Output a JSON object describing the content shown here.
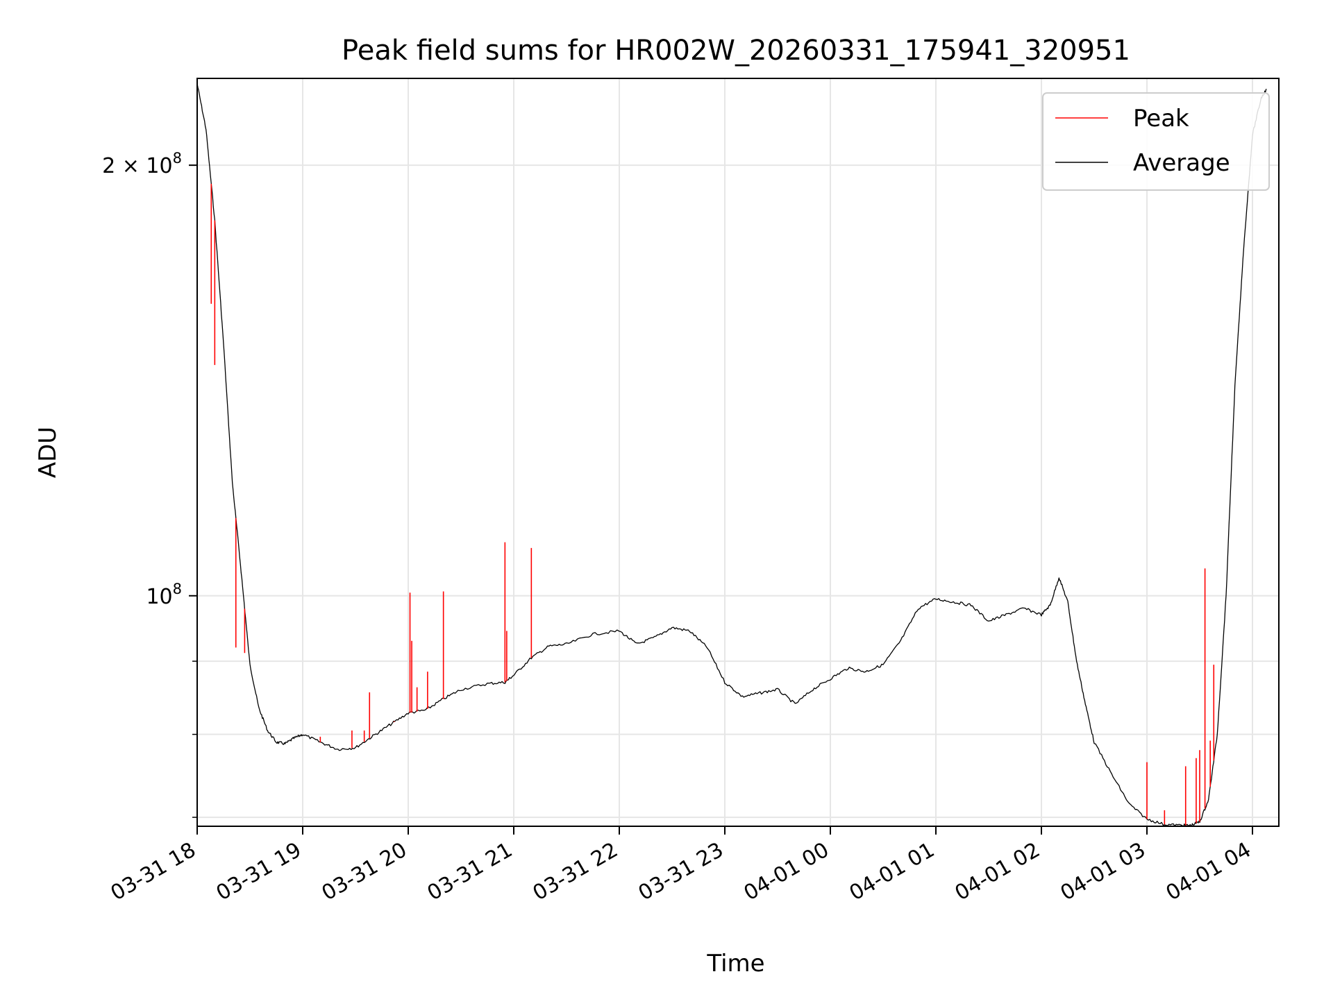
{
  "chart_data": {
    "type": "line",
    "title": "Peak field sums for HR002W_20260331_175941_320951",
    "xlabel": "Time",
    "ylabel": "ADU",
    "yscale": "log",
    "grid": true,
    "legend_position": "upper-right",
    "xlim": [
      "2026-03-31 18:00",
      "2026-04-01 04:15"
    ],
    "ylim": [
      69000000,
      230000000
    ],
    "x_ticks": [
      {
        "t": "2026-03-31 18:00",
        "label": "03-31 18"
      },
      {
        "t": "2026-03-31 19:00",
        "label": "03-31 19"
      },
      {
        "t": "2026-03-31 20:00",
        "label": "03-31 20"
      },
      {
        "t": "2026-03-31 21:00",
        "label": "03-31 21"
      },
      {
        "t": "2026-03-31 22:00",
        "label": "03-31 22"
      },
      {
        "t": "2026-03-31 23:00",
        "label": "03-31 23"
      },
      {
        "t": "2026-04-01 00:00",
        "label": "04-01 00"
      },
      {
        "t": "2026-04-01 01:00",
        "label": "04-01 01"
      },
      {
        "t": "2026-04-01 02:00",
        "label": "04-01 02"
      },
      {
        "t": "2026-04-01 03:00",
        "label": "04-01 03"
      },
      {
        "t": "2026-04-01 04:00",
        "label": "04-01 04"
      }
    ],
    "y_major_ticks": [
      {
        "value": 100000000,
        "label": "10",
        "exp": "8"
      },
      {
        "value": 200000000,
        "label": "2 × 10",
        "exp": "8"
      }
    ],
    "y_minor_ticks": [
      70000000,
      80000000,
      90000000
    ],
    "series": [
      {
        "name": "Average",
        "color": "#000000",
        "x": [
          "2026-03-31 18:00",
          "2026-03-31 18:05",
          "2026-03-31 18:10",
          "2026-03-31 18:15",
          "2026-03-31 18:20",
          "2026-03-31 18:25",
          "2026-03-31 18:30",
          "2026-03-31 18:35",
          "2026-03-31 18:40",
          "2026-03-31 18:45",
          "2026-03-31 18:50",
          "2026-03-31 18:55",
          "2026-03-31 19:00",
          "2026-03-31 19:10",
          "2026-03-31 19:20",
          "2026-03-31 19:30",
          "2026-03-31 19:40",
          "2026-03-31 19:50",
          "2026-03-31 20:00",
          "2026-03-31 20:10",
          "2026-03-31 20:20",
          "2026-03-31 20:30",
          "2026-03-31 20:45",
          "2026-03-31 20:55",
          "2026-03-31 21:00",
          "2026-03-31 21:10",
          "2026-03-31 21:20",
          "2026-03-31 21:30",
          "2026-03-31 21:45",
          "2026-03-31 22:00",
          "2026-03-31 22:10",
          "2026-03-31 22:20",
          "2026-03-31 22:30",
          "2026-03-31 22:40",
          "2026-03-31 22:50",
          "2026-03-31 23:00",
          "2026-03-31 23:10",
          "2026-03-31 23:20",
          "2026-03-31 23:30",
          "2026-03-31 23:40",
          "2026-03-31 23:50",
          "2026-04-01 00:00",
          "2026-04-01 00:10",
          "2026-04-01 00:20",
          "2026-04-01 00:30",
          "2026-04-01 00:40",
          "2026-04-01 00:50",
          "2026-04-01 01:00",
          "2026-04-01 01:10",
          "2026-04-01 01:20",
          "2026-04-01 01:30",
          "2026-04-01 01:40",
          "2026-04-01 01:50",
          "2026-04-01 02:00",
          "2026-04-01 02:05",
          "2026-04-01 02:10",
          "2026-04-01 02:15",
          "2026-04-01 02:20",
          "2026-04-01 02:25",
          "2026-04-01 02:30",
          "2026-04-01 02:40",
          "2026-04-01 02:50",
          "2026-04-01 03:00",
          "2026-04-01 03:10",
          "2026-04-01 03:20",
          "2026-04-01 03:25",
          "2026-04-01 03:30",
          "2026-04-01 03:35",
          "2026-04-01 03:40",
          "2026-04-01 03:45",
          "2026-04-01 03:50",
          "2026-04-01 03:55",
          "2026-04-01 04:00",
          "2026-04-01 04:05",
          "2026-04-01 04:08"
        ],
        "y": [
          228000000,
          212000000,
          183000000,
          150000000,
          120000000,
          104000000,
          89500000,
          83500000,
          80500000,
          79000000,
          78800000,
          79500000,
          80000000,
          79000000,
          78100000,
          78300000,
          79800000,
          81300000,
          82800000,
          83200000,
          84700000,
          86000000,
          86800000,
          87000000,
          88000000,
          90500000,
          92200000,
          92500000,
          94000000,
          94500000,
          92500000,
          93500000,
          95000000,
          94500000,
          92000000,
          87000000,
          85000000,
          85500000,
          86000000,
          84000000,
          86000000,
          87500000,
          89000000,
          88500000,
          89500000,
          93000000,
          98000000,
          99500000,
          99000000,
          98500000,
          96000000,
          97000000,
          98000000,
          97000000,
          98500000,
          103000000,
          99000000,
          90000000,
          84000000,
          79000000,
          75000000,
          71500000,
          69800000,
          69200000,
          69100000,
          69100000,
          69500000,
          72000000,
          80000000,
          100000000,
          140000000,
          175000000,
          210000000,
          223000000,
          226000000
        ]
      },
      {
        "name": "Peak",
        "color": "#ff0000",
        "spikes": [
          {
            "t": "2026-03-31 18:08",
            "y": 160000000
          },
          {
            "t": "2026-03-31 18:10",
            "y": 145000000
          },
          {
            "t": "2026-03-31 18:22",
            "y": 92000000
          },
          {
            "t": "2026-03-31 18:27",
            "y": 91200000
          },
          {
            "t": "2026-03-31 19:10",
            "y": 79700000
          },
          {
            "t": "2026-03-31 19:28",
            "y": 80500000
          },
          {
            "t": "2026-03-31 19:35",
            "y": 80500000
          },
          {
            "t": "2026-03-31 19:38",
            "y": 85600000
          },
          {
            "t": "2026-03-31 19:52",
            "y": 81700000
          },
          {
            "t": "2026-03-31 20:01",
            "y": 100500000
          },
          {
            "t": "2026-03-31 20:02",
            "y": 93000000
          },
          {
            "t": "2026-03-31 20:05",
            "y": 86300000
          },
          {
            "t": "2026-03-31 20:11",
            "y": 88500000
          },
          {
            "t": "2026-03-31 20:20",
            "y": 100700000
          },
          {
            "t": "2026-03-31 20:55",
            "y": 109000000
          },
          {
            "t": "2026-03-31 20:56",
            "y": 94500000
          },
          {
            "t": "2026-03-31 21:10",
            "y": 108000000
          },
          {
            "t": "2026-04-01 03:00",
            "y": 76500000
          },
          {
            "t": "2026-04-01 03:10",
            "y": 70800000
          },
          {
            "t": "2026-04-01 03:22",
            "y": 76000000
          },
          {
            "t": "2026-04-01 03:28",
            "y": 77000000
          },
          {
            "t": "2026-04-01 03:30",
            "y": 78000000
          },
          {
            "t": "2026-04-01 03:33",
            "y": 104500000
          },
          {
            "t": "2026-04-01 03:36",
            "y": 79200000
          },
          {
            "t": "2026-04-01 03:38",
            "y": 89500000
          }
        ]
      }
    ]
  }
}
